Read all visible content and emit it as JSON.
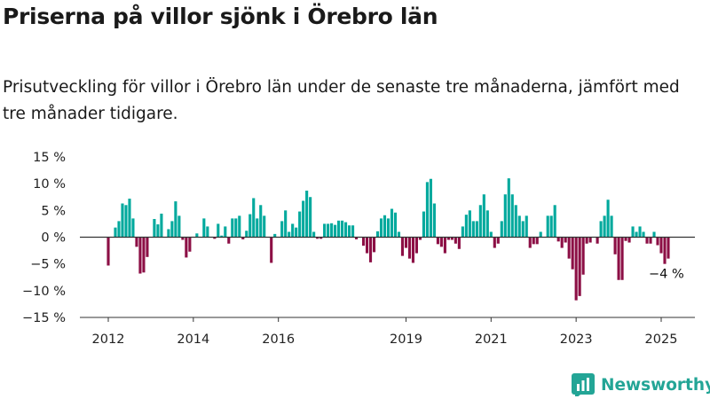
{
  "title": "Priserna på villor sjönk i Örebro län",
  "subtitle": "Prisutveckling för villor i Örebro län under de senaste tre månaderna, jämfört med tre månader tidigare.",
  "brand": {
    "name": "Newsworthy",
    "logo_icon": "newsworthy-logo-icon"
  },
  "colors": {
    "positive": "#00a99d",
    "negative": "#8c0f45",
    "zero_line": "#333333",
    "axis": "#333333"
  },
  "chart_data": {
    "type": "bar",
    "title": "",
    "xlabel": "",
    "ylabel": "",
    "ylim": [
      -15,
      15
    ],
    "grid": false,
    "y_ticks": [
      {
        "value": 15,
        "label": "15 %"
      },
      {
        "value": 10,
        "label": "10 %"
      },
      {
        "value": 5,
        "label": "5 %"
      },
      {
        "value": 0,
        "label": "0 %"
      },
      {
        "value": -5,
        "label": "−5 %"
      },
      {
        "value": -10,
        "label": "−10 %"
      },
      {
        "value": -15,
        "label": "−15 %"
      }
    ],
    "x_ticks": [
      {
        "month": "2012-01",
        "label": "2012"
      },
      {
        "month": "2014-01",
        "label": "2014"
      },
      {
        "month": "2016-01",
        "label": "2016"
      },
      {
        "month": "2019-01",
        "label": "2019"
      },
      {
        "month": "2021-01",
        "label": "2021"
      },
      {
        "month": "2023-01",
        "label": "2023"
      },
      {
        "month": "2025-01",
        "label": "2025"
      }
    ],
    "series": [
      {
        "values": [
          {
            "month": "2012-01",
            "value": -5.3
          },
          {
            "month": "2012-03",
            "value": 1.8
          },
          {
            "month": "2012-04",
            "value": 3.0
          },
          {
            "month": "2012-05",
            "value": 6.3
          },
          {
            "month": "2012-06",
            "value": 6.0
          },
          {
            "month": "2012-07",
            "value": 7.2
          },
          {
            "month": "2012-08",
            "value": 3.5
          },
          {
            "month": "2012-09",
            "value": -1.8
          },
          {
            "month": "2012-10",
            "value": -6.8
          },
          {
            "month": "2012-11",
            "value": -6.6
          },
          {
            "month": "2012-12",
            "value": -3.7
          },
          {
            "month": "2013-02",
            "value": 3.4
          },
          {
            "month": "2013-03",
            "value": 2.4
          },
          {
            "month": "2013-04",
            "value": 4.4
          },
          {
            "month": "2013-06",
            "value": 1.5
          },
          {
            "month": "2013-07",
            "value": 3.0
          },
          {
            "month": "2013-08",
            "value": 6.7
          },
          {
            "month": "2013-09",
            "value": 4.0
          },
          {
            "month": "2013-10",
            "value": -0.5
          },
          {
            "month": "2013-11",
            "value": -3.8
          },
          {
            "month": "2013-12",
            "value": -2.7
          },
          {
            "month": "2014-02",
            "value": 0.7
          },
          {
            "month": "2014-04",
            "value": 3.5
          },
          {
            "month": "2014-05",
            "value": 2.0
          },
          {
            "month": "2014-07",
            "value": -0.3
          },
          {
            "month": "2014-08",
            "value": 2.5
          },
          {
            "month": "2014-09",
            "value": 0.3
          },
          {
            "month": "2014-10",
            "value": 2.0
          },
          {
            "month": "2014-11",
            "value": -1.2
          },
          {
            "month": "2014-12",
            "value": 3.5
          },
          {
            "month": "2015-01",
            "value": 3.5
          },
          {
            "month": "2015-02",
            "value": 4.0
          },
          {
            "month": "2015-03",
            "value": -0.4
          },
          {
            "month": "2015-04",
            "value": 1.2
          },
          {
            "month": "2015-05",
            "value": 4.3
          },
          {
            "month": "2015-06",
            "value": 7.3
          },
          {
            "month": "2015-07",
            "value": 3.5
          },
          {
            "month": "2015-08",
            "value": 6.0
          },
          {
            "month": "2015-09",
            "value": 4.0
          },
          {
            "month": "2015-11",
            "value": -4.8
          },
          {
            "month": "2015-12",
            "value": 0.6
          },
          {
            "month": "2016-02",
            "value": 3.0
          },
          {
            "month": "2016-03",
            "value": 5.0
          },
          {
            "month": "2016-04",
            "value": 1.0
          },
          {
            "month": "2016-05",
            "value": 2.5
          },
          {
            "month": "2016-06",
            "value": 1.8
          },
          {
            "month": "2016-07",
            "value": 4.8
          },
          {
            "month": "2016-08",
            "value": 6.8
          },
          {
            "month": "2016-09",
            "value": 8.7
          },
          {
            "month": "2016-10",
            "value": 7.5
          },
          {
            "month": "2016-11",
            "value": 1.0
          },
          {
            "month": "2016-12",
            "value": -0.3
          },
          {
            "month": "2017-01",
            "value": -0.3
          },
          {
            "month": "2017-02",
            "value": 2.5
          },
          {
            "month": "2017-03",
            "value": 2.5
          },
          {
            "month": "2017-04",
            "value": 2.6
          },
          {
            "month": "2017-05",
            "value": 2.3
          },
          {
            "month": "2017-06",
            "value": 3.1
          },
          {
            "month": "2017-07",
            "value": 3.1
          },
          {
            "month": "2017-08",
            "value": 2.8
          },
          {
            "month": "2017-09",
            "value": 2.2
          },
          {
            "month": "2017-10",
            "value": 2.2
          },
          {
            "month": "2017-11",
            "value": -0.4
          },
          {
            "month": "2018-01",
            "value": -1.6
          },
          {
            "month": "2018-02",
            "value": -3.0
          },
          {
            "month": "2018-03",
            "value": -4.7
          },
          {
            "month": "2018-04",
            "value": -2.8
          },
          {
            "month": "2018-05",
            "value": 1.1
          },
          {
            "month": "2018-06",
            "value": 3.5
          },
          {
            "month": "2018-07",
            "value": 4.1
          },
          {
            "month": "2018-08",
            "value": 3.5
          },
          {
            "month": "2018-09",
            "value": 5.3
          },
          {
            "month": "2018-10",
            "value": 4.6
          },
          {
            "month": "2018-11",
            "value": 1.0
          },
          {
            "month": "2018-12",
            "value": -3.5
          },
          {
            "month": "2019-01",
            "value": -2.0
          },
          {
            "month": "2019-02",
            "value": -4.0
          },
          {
            "month": "2019-03",
            "value": -4.8
          },
          {
            "month": "2019-04",
            "value": -3.0
          },
          {
            "month": "2019-05",
            "value": -0.5
          },
          {
            "month": "2019-06",
            "value": 4.8
          },
          {
            "month": "2019-07",
            "value": 10.3
          },
          {
            "month": "2019-08",
            "value": 10.9
          },
          {
            "month": "2019-09",
            "value": 6.3
          },
          {
            "month": "2019-10",
            "value": -1.3
          },
          {
            "month": "2019-11",
            "value": -1.8
          },
          {
            "month": "2019-12",
            "value": -3.0
          },
          {
            "month": "2020-01",
            "value": -0.5
          },
          {
            "month": "2020-02",
            "value": -0.5
          },
          {
            "month": "2020-03",
            "value": -1.2
          },
          {
            "month": "2020-04",
            "value": -2.2
          },
          {
            "month": "2020-05",
            "value": 2.0
          },
          {
            "month": "2020-06",
            "value": 4.2
          },
          {
            "month": "2020-07",
            "value": 5.0
          },
          {
            "month": "2020-08",
            "value": 3.0
          },
          {
            "month": "2020-09",
            "value": 3.0
          },
          {
            "month": "2020-10",
            "value": 6.0
          },
          {
            "month": "2020-11",
            "value": 8.0
          },
          {
            "month": "2020-12",
            "value": 5.0
          },
          {
            "month": "2021-01",
            "value": 1.0
          },
          {
            "month": "2021-02",
            "value": -2.0
          },
          {
            "month": "2021-03",
            "value": -1.2
          },
          {
            "month": "2021-04",
            "value": 3.0
          },
          {
            "month": "2021-05",
            "value": 8.0
          },
          {
            "month": "2021-06",
            "value": 11.0
          },
          {
            "month": "2021-07",
            "value": 8.0
          },
          {
            "month": "2021-08",
            "value": 6.0
          },
          {
            "month": "2021-09",
            "value": 4.0
          },
          {
            "month": "2021-10",
            "value": 3.0
          },
          {
            "month": "2021-11",
            "value": 4.0
          },
          {
            "month": "2021-12",
            "value": -2.0
          },
          {
            "month": "2022-01",
            "value": -1.3
          },
          {
            "month": "2022-02",
            "value": -1.3
          },
          {
            "month": "2022-03",
            "value": 1.0
          },
          {
            "month": "2022-05",
            "value": 4.0
          },
          {
            "month": "2022-06",
            "value": 4.0
          },
          {
            "month": "2022-07",
            "value": 6.0
          },
          {
            "month": "2022-08",
            "value": -0.8
          },
          {
            "month": "2022-09",
            "value": -2.0
          },
          {
            "month": "2022-10",
            "value": -1.0
          },
          {
            "month": "2022-11",
            "value": -4.0
          },
          {
            "month": "2022-12",
            "value": -6.0
          },
          {
            "month": "2023-01",
            "value": -11.8
          },
          {
            "month": "2023-02",
            "value": -11.0
          },
          {
            "month": "2023-03",
            "value": -7.0
          },
          {
            "month": "2023-04",
            "value": -1.2
          },
          {
            "month": "2023-05",
            "value": -1.0
          },
          {
            "month": "2023-07",
            "value": -1.2
          },
          {
            "month": "2023-08",
            "value": 3.0
          },
          {
            "month": "2023-09",
            "value": 4.0
          },
          {
            "month": "2023-10",
            "value": 7.0
          },
          {
            "month": "2023-11",
            "value": 4.0
          },
          {
            "month": "2023-12",
            "value": -3.2
          },
          {
            "month": "2024-01",
            "value": -8.0
          },
          {
            "month": "2024-02",
            "value": -8.0
          },
          {
            "month": "2024-03",
            "value": -0.7
          },
          {
            "month": "2024-04",
            "value": -1.0
          },
          {
            "month": "2024-05",
            "value": 2.0
          },
          {
            "month": "2024-06",
            "value": 1.0
          },
          {
            "month": "2024-07",
            "value": 2.0
          },
          {
            "month": "2024-08",
            "value": 1.0
          },
          {
            "month": "2024-09",
            "value": -1.2
          },
          {
            "month": "2024-10",
            "value": -1.2
          },
          {
            "month": "2024-11",
            "value": 1.0
          },
          {
            "month": "2024-12",
            "value": -1.5
          },
          {
            "month": "2025-01",
            "value": -3.0
          },
          {
            "month": "2025-02",
            "value": -5.0
          },
          {
            "month": "2025-03",
            "value": -4.0
          }
        ]
      }
    ],
    "annotations": [
      {
        "month": "2025-03",
        "value": -4,
        "label": "−4 %"
      }
    ]
  }
}
